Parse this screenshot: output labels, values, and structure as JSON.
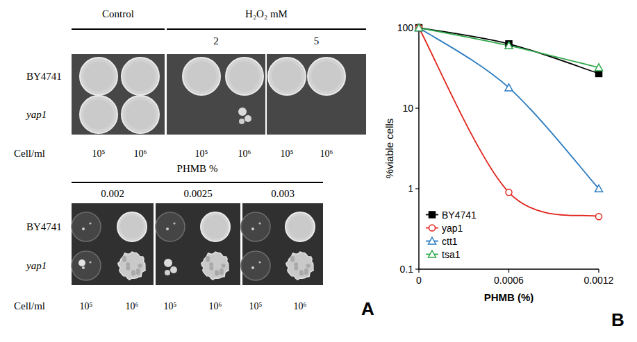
{
  "panel_a": {
    "label": "A",
    "row_labels": [
      "BY4741",
      "yap1"
    ],
    "cell_label": "Cell/ml",
    "densities": [
      "10⁵",
      "10⁶"
    ],
    "top": {
      "groups": [
        {
          "title": "Control",
          "conditions": []
        },
        {
          "title": "H₂O₂ mM",
          "conditions": [
            "2",
            "5"
          ]
        }
      ]
    },
    "bottom": {
      "groups": [
        {
          "title": "PHMB %",
          "conditions": [
            "0.002",
            "0.0025",
            "0.003"
          ]
        }
      ]
    }
  },
  "panel_b": {
    "label": "B"
  },
  "chart_data": {
    "type": "line",
    "x": [
      0,
      0.0006,
      0.0012
    ],
    "xlim": [
      0,
      0.0012
    ],
    "xticks": [
      0,
      0.0006,
      0.0012
    ],
    "ylim": [
      0.1,
      100
    ],
    "yticks": [
      0.1,
      1,
      10,
      100
    ],
    "log": "y",
    "x_label": "PHMB (%)",
    "y_label": "%viable cells",
    "legend": "lower left",
    "series": [
      {
        "name": "BY4741",
        "color": "#000000",
        "marker": "square",
        "values": [
          100,
          63,
          27
        ]
      },
      {
        "name": "yap1",
        "color": "#e0241b",
        "marker": "circle",
        "values": [
          100,
          0.9,
          0.45
        ]
      },
      {
        "name": "ctt1",
        "color": "#2a7bc0",
        "marker": "triangle",
        "values": [
          100,
          18,
          1
        ]
      },
      {
        "name": "tsa1",
        "color": "#2ea84a",
        "marker": "triangle",
        "values": [
          100,
          60,
          32
        ]
      }
    ]
  }
}
